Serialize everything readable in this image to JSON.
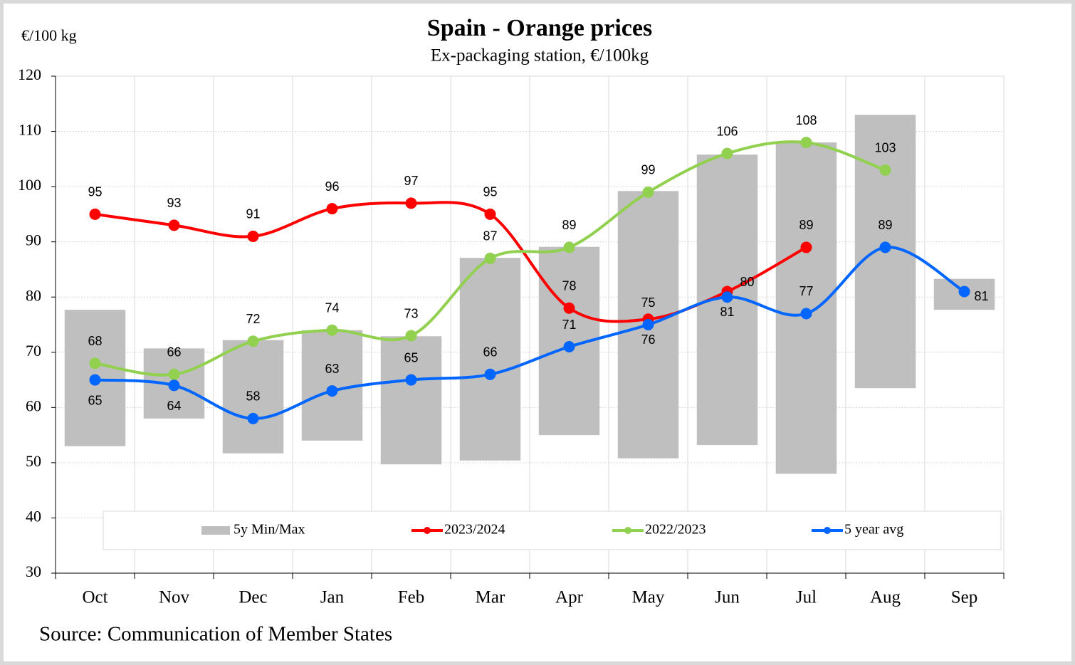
{
  "chart_data": {
    "type": "line",
    "title": "Spain  -  Orange prices",
    "subtitle": "Ex-packaging  station,  €/100kg",
    "y_label": "€/100 kg",
    "source": "Source:  Communication  of  Member  States",
    "categories": [
      "Oct",
      "Nov",
      "Dec",
      "Jan",
      "Feb",
      "Mar",
      "Apr",
      "May",
      "Jun",
      "Jul",
      "Aug",
      "Sep"
    ],
    "range_series": {
      "name": "5y Min/Max",
      "color": "#bfbfbf",
      "low": [
        53,
        58,
        51.7,
        54,
        49.7,
        50.4,
        55,
        50.8,
        53.2,
        48,
        63.5,
        77.7
      ],
      "high": [
        77.7,
        70.7,
        72.2,
        74,
        72.9,
        87.1,
        89.1,
        99.2,
        105.8,
        108,
        113,
        83.3
      ]
    },
    "series": [
      {
        "name": "2023/2024",
        "color": "#ff0000",
        "values": [
          95,
          93,
          91,
          96,
          97,
          95,
          78,
          76,
          81,
          89,
          null,
          null
        ]
      },
      {
        "name": "2022/2023",
        "color": "#92d050",
        "values": [
          68,
          66,
          72,
          74,
          73,
          87,
          89,
          99,
          106,
          108,
          103,
          null
        ]
      },
      {
        "name": "5 year avg",
        "color": "#0066ff",
        "values": [
          65,
          64,
          58,
          63,
          65,
          66,
          71,
          75,
          80,
          77,
          89,
          81
        ]
      }
    ],
    "ylim": [
      30,
      120
    ],
    "yticks": [
      30,
      40,
      50,
      60,
      70,
      80,
      90,
      100,
      110,
      120
    ],
    "grid": true,
    "legend": "bottom"
  }
}
